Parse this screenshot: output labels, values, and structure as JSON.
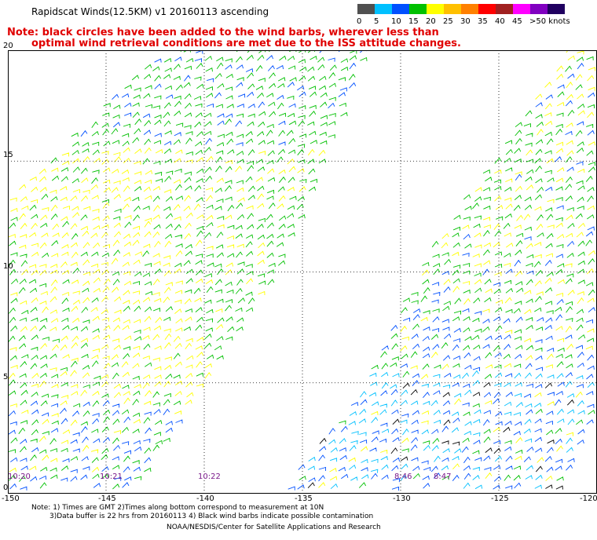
{
  "title": "Rapidscat Winds(12.5KM) v1 20160113 ascending",
  "note": {
    "line1": "Note: black circles have been added to the wind barbs, wherever less than",
    "line2": "optimal wind retrieval conditions are met due to the ISS attitude changes."
  },
  "colorbar": {
    "labels": [
      "0",
      "5",
      "10",
      "15",
      "20",
      "25",
      "30",
      "35",
      "40",
      "45",
      ">50 knots"
    ],
    "colors": [
      "#505050",
      "#00c0ff",
      "#0050ff",
      "#00c000",
      "#ffff00",
      "#ffc000",
      "#ff8000",
      "#ff0000",
      "#a02020",
      "#ff00ff",
      "#8000c0",
      "#200060"
    ]
  },
  "map": {
    "lon_labels": [
      "-150",
      "-145",
      "-140",
      "-135",
      "-130",
      "-125",
      "-120"
    ],
    "lat_labels": [
      "0",
      "5",
      "10",
      "15",
      "20"
    ],
    "lon_range": [
      -150,
      -120
    ],
    "lat_range": [
      0,
      20
    ],
    "grid": "dotted",
    "times": [
      {
        "label": "10:20",
        "lon": -150
      },
      {
        "label": "10:21",
        "lon": -145
      },
      {
        "label": "10:22",
        "lon": -140
      },
      {
        "label": "8:46",
        "lon": -130
      },
      {
        "label": "8:47",
        "lon": -128
      }
    ]
  },
  "footer": {
    "line1": "Note: 1) Times are GMT 2)Times along bottom correspond to measurement at 10N",
    "line2": "3)Data buffer is 22 hrs from 20160113 4) Black wind barbs indicate possible contamination",
    "line3": "NOAA/NESDIS/Center for Satellite Applications and Research"
  }
}
